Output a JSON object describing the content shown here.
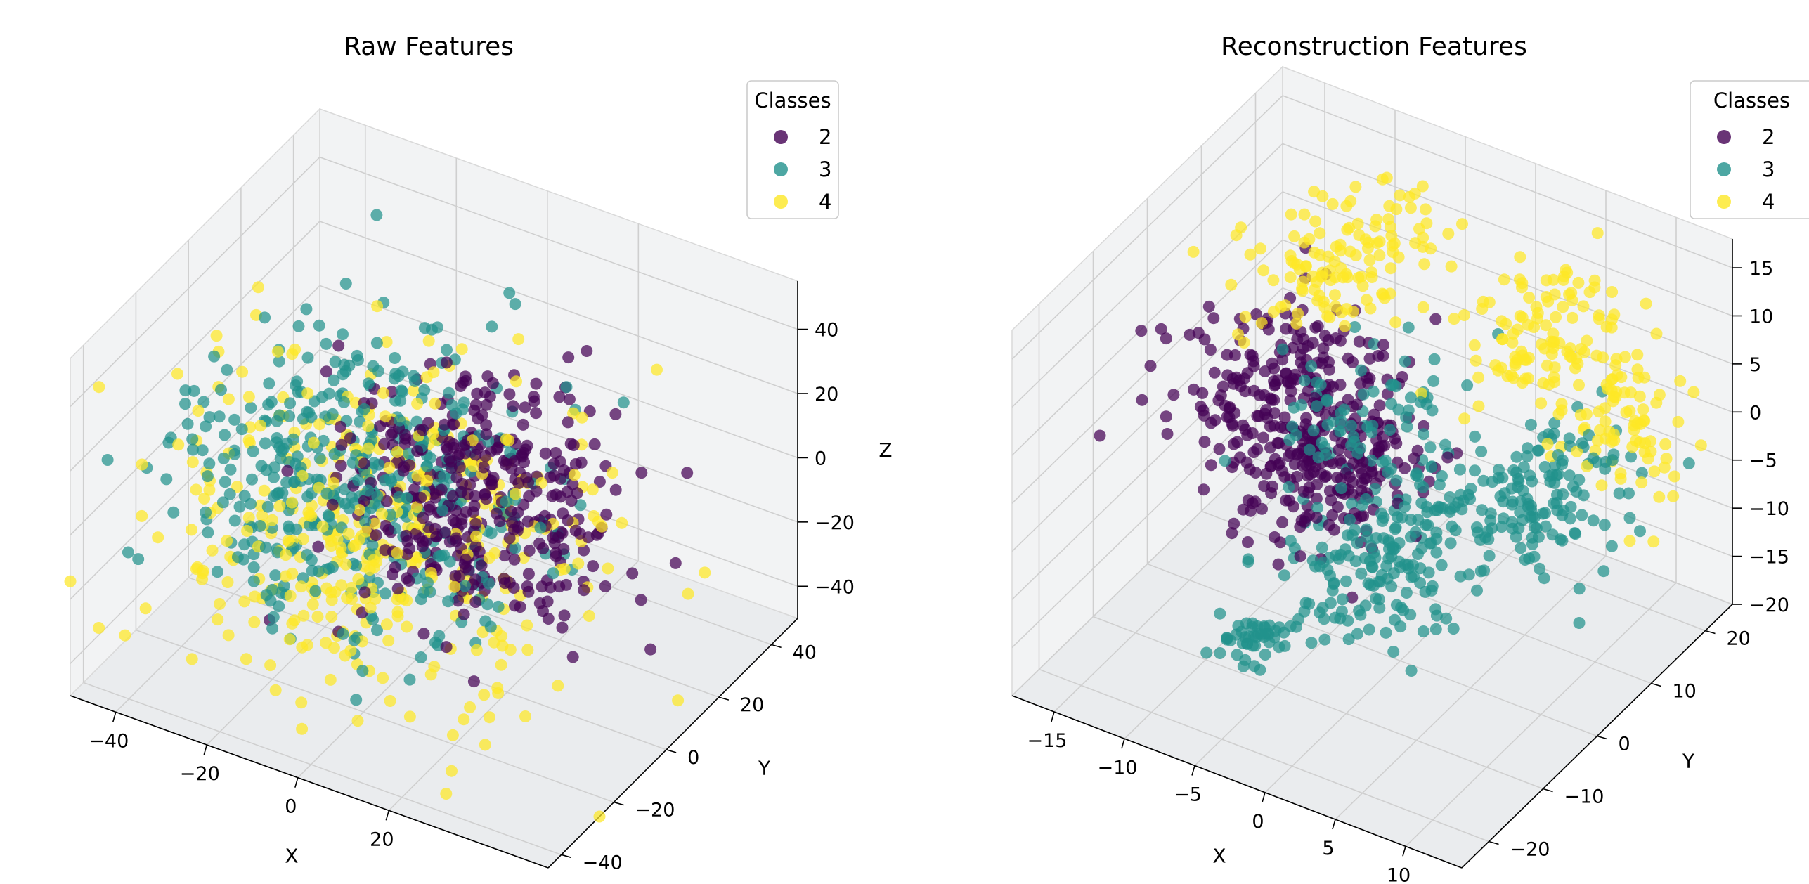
{
  "colors": {
    "2": "#440154",
    "3": "#21918c",
    "4": "#fde725"
  },
  "chart_data": [
    {
      "type": "scatter",
      "title": "Raw Features",
      "xlabel": "X",
      "ylabel": "Y",
      "zlabel": "Z",
      "xlim": [
        -50,
        55
      ],
      "ylim": [
        -45,
        50
      ],
      "zlim": [
        -50,
        55
      ],
      "xticks": [
        -40,
        -20,
        0,
        20
      ],
      "yticks": [
        -40,
        -20,
        0,
        20,
        40
      ],
      "zticks": [
        -40,
        -20,
        0,
        20,
        40
      ],
      "grid": true,
      "legend": {
        "title": "Classes",
        "entries": [
          "2",
          "3",
          "4"
        ],
        "placement": "top-right"
      },
      "series": [
        {
          "name": "2",
          "count": 380,
          "center": [
            12,
            3,
            5
          ],
          "spread": [
            13,
            14,
            14
          ]
        },
        {
          "name": "3",
          "count": 430,
          "center": [
            -10,
            -3,
            2
          ],
          "spread": [
            19,
            17,
            19
          ]
        },
        {
          "name": "4",
          "count": 400,
          "center": [
            -5,
            -4,
            -8
          ],
          "spread": [
            21,
            19,
            22
          ]
        }
      ]
    },
    {
      "type": "scatter",
      "title": "Reconstruction Features",
      "xlabel": "X",
      "ylabel": "Y",
      "zlabel": "",
      "xlim": [
        -18,
        14
      ],
      "ylim": [
        -25,
        25
      ],
      "zlim": [
        -20,
        18
      ],
      "xticks": [
        -15,
        -10,
        -5,
        0,
        5,
        10
      ],
      "yticks": [
        -20,
        -10,
        0,
        10,
        20
      ],
      "zticks": [
        -20,
        -15,
        -10,
        -5,
        0,
        5,
        10,
        15
      ],
      "grid": true,
      "legend": {
        "title": "Classes",
        "entries": [
          "2",
          "3",
          "4"
        ],
        "placement": "top-right"
      },
      "series": [
        {
          "name": "2",
          "count": 400,
          "clusters": [
            {
              "center": [
                -10,
                5,
                0
              ],
              "spread": [
                3.5,
                6,
                3
              ],
              "weight": 0.55
            },
            {
              "center": [
                -5,
                0,
                -3
              ],
              "spread": [
                2.5,
                5,
                2.5
              ],
              "weight": 0.45
            }
          ]
        },
        {
          "name": "3",
          "count": 450,
          "clusters": [
            {
              "center": [
                1,
                -5,
                -6
              ],
              "spread": [
                2.5,
                7,
                3
              ],
              "weight": 0.4
            },
            {
              "center": [
                6,
                10,
                -5
              ],
              "spread": [
                2.5,
                6,
                3
              ],
              "weight": 0.3
            },
            {
              "center": [
                -2,
                0,
                3
              ],
              "spread": [
                3,
                6,
                3
              ],
              "weight": 0.2
            },
            {
              "center": [
                -7,
                -10,
                -16
              ],
              "spread": [
                1,
                1.5,
                1
              ],
              "weight": 0.1
            }
          ]
        },
        {
          "name": "4",
          "count": 320,
          "clusters": [
            {
              "center": [
                -8,
                10,
                12
              ],
              "spread": [
                2.5,
                6,
                2
              ],
              "weight": 0.4
            },
            {
              "center": [
                4,
                15,
                8
              ],
              "spread": [
                2.5,
                5,
                3
              ],
              "weight": 0.35
            },
            {
              "center": [
                9,
                18,
                0
              ],
              "spread": [
                1.8,
                3,
                4
              ],
              "weight": 0.25
            }
          ]
        }
      ]
    }
  ]
}
